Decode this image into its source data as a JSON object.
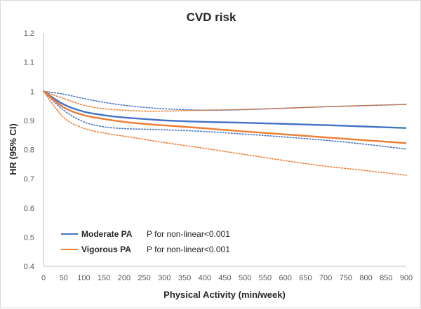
{
  "chart_data": {
    "type": "line",
    "title": "CVD risk",
    "xlabel": "Physical Activity (min/week)",
    "ylabel": "HR (95% CI)",
    "xlim": [
      0,
      900
    ],
    "ylim": [
      0.4,
      1.2
    ],
    "x_ticks": [
      0,
      50,
      100,
      150,
      200,
      250,
      300,
      350,
      400,
      450,
      500,
      550,
      600,
      650,
      700,
      750,
      800,
      850,
      900
    ],
    "y_ticks": [
      0.4,
      0.5,
      0.6,
      0.7,
      0.8,
      0.9,
      1,
      1.1,
      1.2
    ],
    "grid": false,
    "legend_position": "bottom-left",
    "series": [
      {
        "name": "Moderate PA",
        "note": "P for non-linear<0.001",
        "color": "#4472c4",
        "x": [
          0,
          50,
          100,
          150,
          200,
          250,
          300,
          400,
          500,
          600,
          700,
          800,
          900
        ],
        "hr": [
          1.0,
          0.955,
          0.93,
          0.918,
          0.91,
          0.905,
          0.9,
          0.895,
          0.892,
          0.888,
          0.884,
          0.879,
          0.874
        ],
        "ci_lower": [
          1.0,
          0.935,
          0.895,
          0.878,
          0.872,
          0.87,
          0.868,
          0.862,
          0.853,
          0.843,
          0.832,
          0.818,
          0.802
        ],
        "ci_upper": [
          1.0,
          0.99,
          0.975,
          0.962,
          0.952,
          0.945,
          0.94,
          0.935,
          0.937,
          0.942,
          0.947,
          0.951,
          0.955
        ]
      },
      {
        "name": "Vigorous PA",
        "note": "P for non-linear<0.001",
        "color": "#ed7d31",
        "x": [
          0,
          50,
          100,
          150,
          200,
          250,
          300,
          400,
          500,
          600,
          700,
          800,
          900
        ],
        "hr": [
          1.0,
          0.945,
          0.918,
          0.905,
          0.895,
          0.888,
          0.883,
          0.873,
          0.862,
          0.852,
          0.842,
          0.832,
          0.822
        ],
        "ci_lower": [
          1.0,
          0.91,
          0.873,
          0.857,
          0.846,
          0.835,
          0.824,
          0.804,
          0.783,
          0.762,
          0.743,
          0.728,
          0.712
        ],
        "ci_upper": [
          1.0,
          0.975,
          0.952,
          0.94,
          0.935,
          0.932,
          0.932,
          0.935,
          0.938,
          0.942,
          0.947,
          0.951,
          0.955
        ]
      }
    ]
  }
}
